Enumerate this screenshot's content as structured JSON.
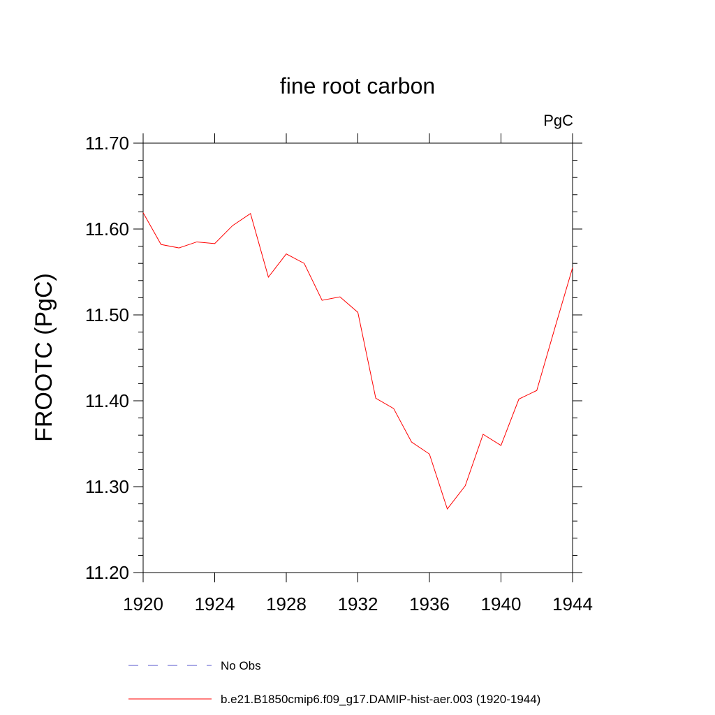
{
  "chart_data": {
    "type": "line",
    "title": "fine root carbon",
    "units_label": "PgC",
    "ylabel": "FROOTC  (PgC)",
    "xlabel": "",
    "xlim": [
      1920,
      1944
    ],
    "ylim": [
      11.2,
      11.7
    ],
    "x_ticks": [
      1920,
      1924,
      1928,
      1932,
      1936,
      1940,
      1944
    ],
    "x_tick_labels": [
      "1920",
      "1924",
      "1928",
      "1932",
      "1936",
      "1940",
      "1944"
    ],
    "y_ticks": [
      11.2,
      11.3,
      11.4,
      11.5,
      11.6,
      11.7
    ],
    "y_tick_labels": [
      "11.20",
      "11.30",
      "11.40",
      "11.50",
      "11.60",
      "11.70"
    ],
    "grid": false,
    "legend_position": "bottom",
    "series": [
      {
        "name": "b.e21.B1850cmip6.f09_g17.DAMIP-hist-aer.003 (1920-1944)",
        "color": "#ff0000",
        "line_style": "solid",
        "x": [
          1920,
          1921,
          1922,
          1923,
          1924,
          1925,
          1926,
          1927,
          1928,
          1929,
          1930,
          1931,
          1932,
          1933,
          1934,
          1935,
          1936,
          1937,
          1938,
          1939,
          1940,
          1941,
          1942,
          1943,
          1944
        ],
        "y": [
          11.619,
          11.582,
          11.578,
          11.585,
          11.583,
          11.604,
          11.618,
          11.544,
          11.571,
          11.56,
          11.517,
          11.521,
          11.503,
          11.403,
          11.391,
          11.352,
          11.338,
          11.274,
          11.301,
          11.361,
          11.348,
          11.402,
          11.412,
          11.484,
          11.555
        ]
      }
    ],
    "legend": [
      {
        "label": "No Obs",
        "color": "#5555cc",
        "line_style": "dashed"
      },
      {
        "label": "b.e21.B1850cmip6.f09_g17.DAMIP-hist-aer.003 (1920-1944)",
        "color": "#ff0000",
        "line_style": "solid"
      }
    ]
  }
}
